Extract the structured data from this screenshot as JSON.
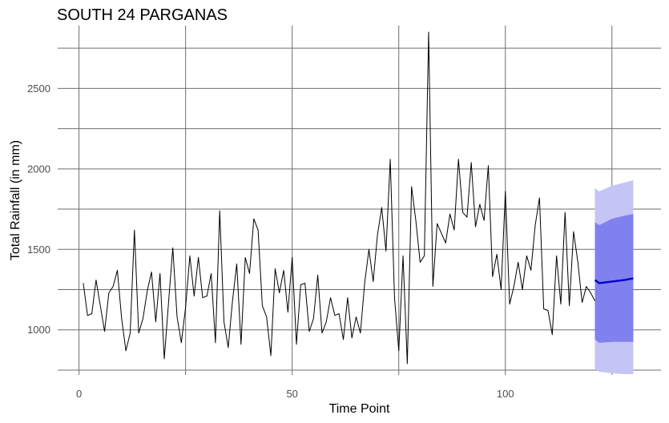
{
  "chart_data": {
    "type": "line",
    "title": "SOUTH 24 PARGANAS",
    "xlabel": "Time Point",
    "ylabel": "Total Rainfall (in mm)",
    "xlim": [
      -5,
      136.5
    ],
    "ylim": [
      720,
      2890
    ],
    "x_ticks": [
      0,
      50,
      100
    ],
    "y_ticks": [
      1000,
      1500,
      2000,
      2500
    ],
    "grid": true,
    "legend": "none",
    "colors": {
      "observed": "#000000",
      "forecast_mean": "#0000cc",
      "band_80": "#8080ee",
      "band_95": "#c4c4f5",
      "grid": "#6e6e6e"
    },
    "series": [
      {
        "role": "observed",
        "x_start": 1,
        "values": [
          1290,
          1090,
          1100,
          1310,
          1150,
          990,
          1230,
          1270,
          1370,
          1070,
          870,
          980,
          1620,
          980,
          1070,
          1240,
          1360,
          1050,
          1350,
          820,
          1170,
          1510,
          1080,
          920,
          1140,
          1460,
          1210,
          1450,
          1200,
          1210,
          1350,
          920,
          1740,
          1050,
          890,
          1180,
          1410,
          910,
          1450,
          1350,
          1690,
          1620,
          1150,
          1080,
          840,
          1380,
          1230,
          1370,
          1110,
          1450,
          910,
          1280,
          1290,
          990,
          1070,
          1340,
          980,
          1050,
          1200,
          1090,
          1100,
          940,
          1200,
          950,
          1080,
          980,
          1290,
          1500,
          1300,
          1590,
          1760,
          1490,
          2060,
          1200,
          870,
          1460,
          790,
          1890,
          1680,
          1420,
          1460,
          2850,
          1270,
          1660,
          1600,
          1540,
          1720,
          1620,
          2060,
          1730,
          1700,
          2040,
          1640,
          1780,
          1680,
          2020,
          1330,
          1470,
          1250,
          1860,
          1160,
          1270,
          1420,
          1250,
          1460,
          1370,
          1650,
          1820,
          1130,
          1120,
          970,
          1460,
          1160,
          1730,
          1150,
          1610,
          1420,
          1170,
          1270,
          1230,
          1180
        ]
      },
      {
        "role": "forecast_mean",
        "x": [
          121,
          122,
          125,
          128,
          130
        ],
        "values": [
          1310,
          1290,
          1300,
          1310,
          1320
        ]
      }
    ],
    "bands": [
      {
        "role": "band_95",
        "x": [
          121,
          122,
          125,
          128,
          130
        ],
        "upper": [
          1880,
          1860,
          1895,
          1915,
          1930
        ],
        "lower": [
          760,
          740,
          730,
          725,
          725
        ]
      },
      {
        "role": "band_80",
        "x": [
          121,
          122,
          125,
          128,
          130
        ],
        "upper": [
          1670,
          1650,
          1690,
          1710,
          1720
        ],
        "lower": [
          940,
          920,
          925,
          925,
          925
        ]
      }
    ]
  }
}
